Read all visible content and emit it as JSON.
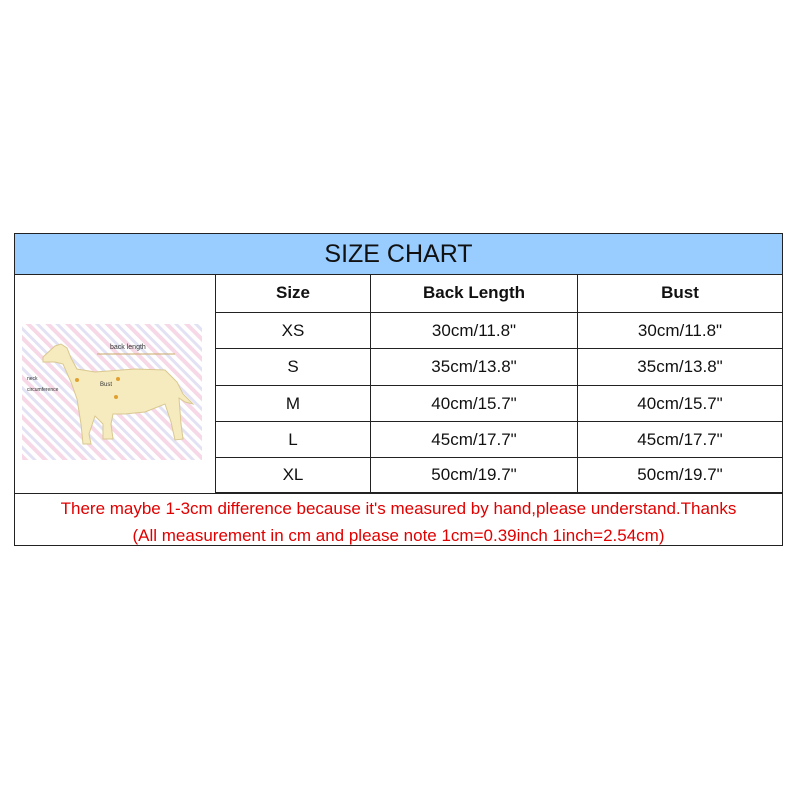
{
  "title": "SIZE CHART",
  "diagram": {
    "back_length": "back length",
    "bust": "Bust",
    "neck_line1": "neck",
    "neck_line2": "circumference"
  },
  "headers": [
    "Size",
    "Back Length",
    "Bust"
  ],
  "rows": [
    [
      "XS",
      "30cm/11.8\"",
      "30cm/11.8\""
    ],
    [
      "S",
      "35cm/13.8\"",
      "35cm/13.8\""
    ],
    [
      "M",
      "40cm/15.7\"",
      "40cm/15.7\""
    ],
    [
      "L",
      "45cm/17.7\"",
      "45cm/17.7\""
    ],
    [
      "XL",
      "50cm/19.7\"",
      "50cm/19.7\""
    ]
  ],
  "notes": [
    "There maybe 1-3cm difference because it's measured by hand,please understand.Thanks",
    "(All measurement in cm and please note 1cm=0.39inch 1inch=2.54cm)"
  ],
  "colors": {
    "header_bg": "#99ccff",
    "note_text": "#e00000"
  }
}
